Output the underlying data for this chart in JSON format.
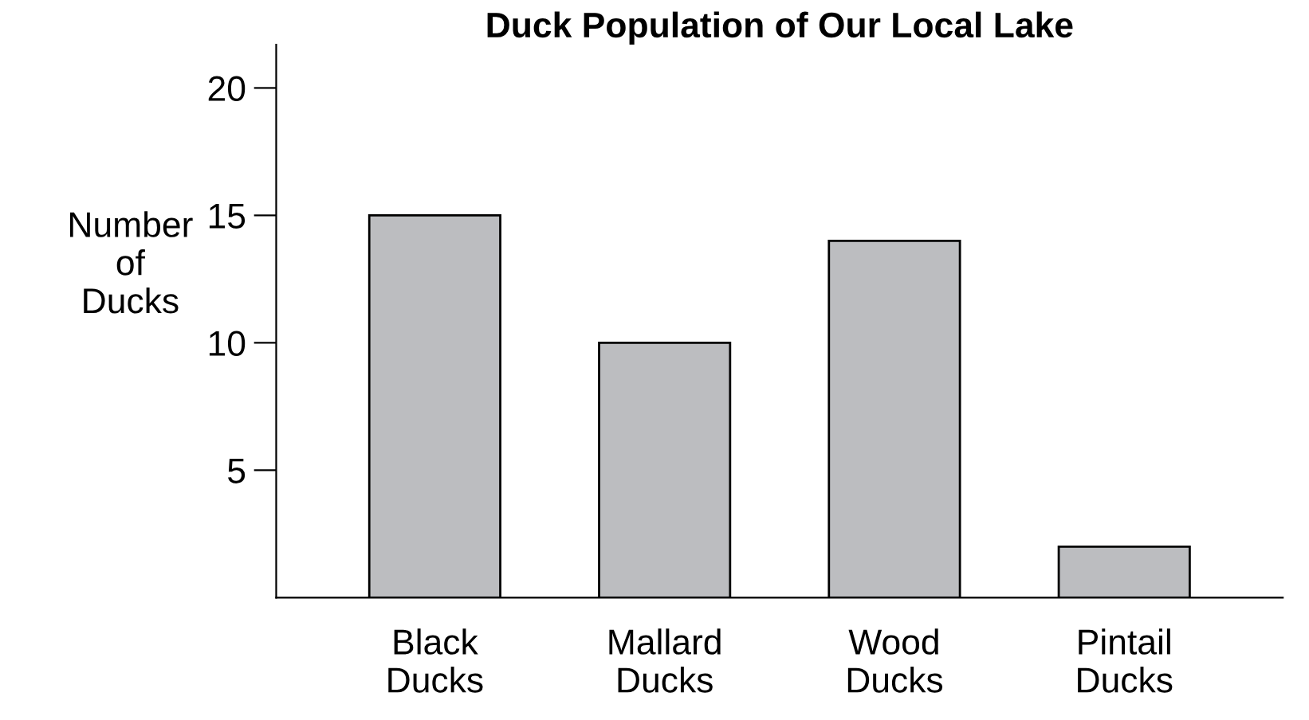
{
  "chart_data": {
    "type": "bar",
    "title": "Duck Population of Our Local Lake",
    "ylabel": "Number\nof\nDucks",
    "categories": [
      "Black\nDucks",
      "Mallard\nDucks",
      "Wood\nDucks",
      "Pintail\nDucks"
    ],
    "values": [
      15,
      10,
      14,
      2
    ],
    "color": "#bcbdc0",
    "ylim": [
      0,
      21.7
    ],
    "yticks": [
      5,
      10,
      15,
      20
    ],
    "grid": false,
    "legend": false
  }
}
